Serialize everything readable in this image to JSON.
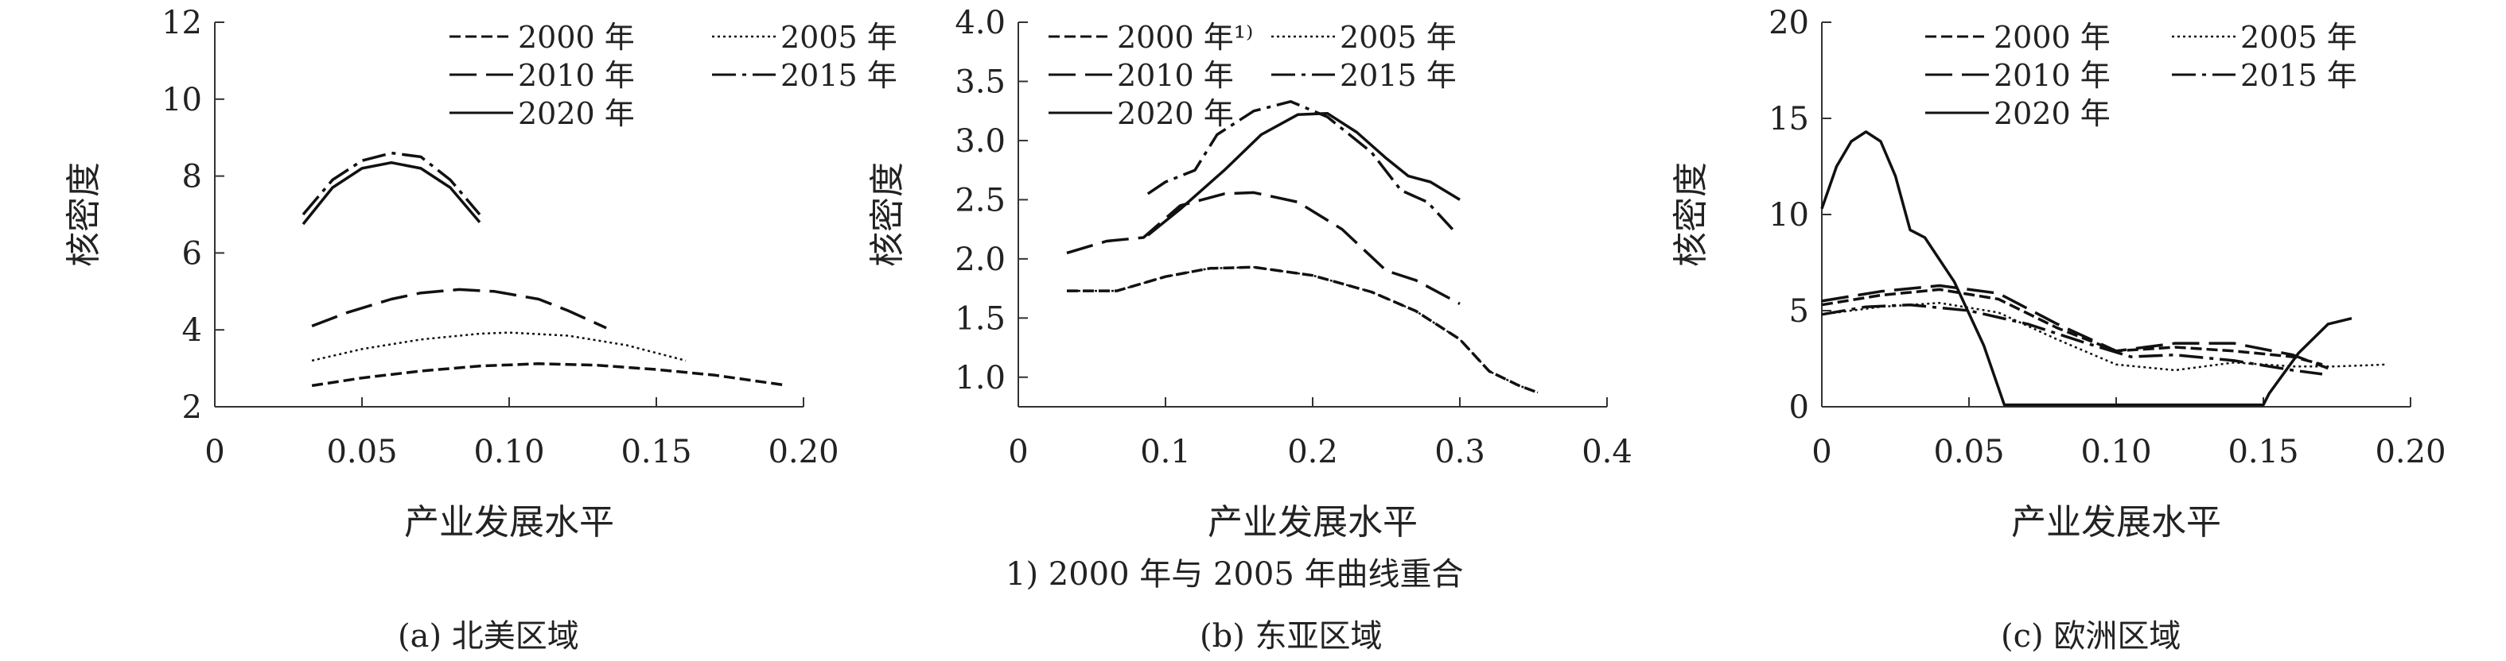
{
  "footnote": "1) 2000 年与 2005 年曲线重合",
  "chart_data": [
    {
      "type": "line",
      "caption": "(a) 北美区域",
      "xlabel": "产业发展水平",
      "ylabel": "核密度",
      "xlim": [
        0,
        0.2
      ],
      "ylim": [
        2,
        12
      ],
      "xticks": [
        "0",
        "0.05",
        "0.10",
        "0.15",
        "0.20"
      ],
      "yticks": [
        "2",
        "4",
        "6",
        "8",
        "10",
        "12"
      ],
      "legend": [
        "2000 年",
        "2005 年",
        "2010 年",
        "2015 年",
        "2020 年"
      ],
      "series": [
        {
          "name": "2000 年",
          "style": "dash-short",
          "points": [
            [
              0.033,
              2.55
            ],
            [
              0.05,
              2.75
            ],
            [
              0.07,
              2.93
            ],
            [
              0.09,
              3.06
            ],
            [
              0.11,
              3.12
            ],
            [
              0.13,
              3.08
            ],
            [
              0.15,
              2.97
            ],
            [
              0.17,
              2.82
            ],
            [
              0.193,
              2.57
            ]
          ]
        },
        {
          "name": "2005 年",
          "style": "dotted",
          "points": [
            [
              0.033,
              3.2
            ],
            [
              0.05,
              3.5
            ],
            [
              0.07,
              3.75
            ],
            [
              0.09,
              3.9
            ],
            [
              0.1,
              3.93
            ],
            [
              0.12,
              3.85
            ],
            [
              0.14,
              3.6
            ],
            [
              0.16,
              3.2
            ]
          ]
        },
        {
          "name": "2010 年",
          "style": "dash-long",
          "points": [
            [
              0.033,
              4.1
            ],
            [
              0.045,
              4.45
            ],
            [
              0.06,
              4.8
            ],
            [
              0.07,
              4.96
            ],
            [
              0.083,
              5.05
            ],
            [
              0.095,
              5.0
            ],
            [
              0.11,
              4.8
            ],
            [
              0.12,
              4.5
            ],
            [
              0.133,
              4.05
            ]
          ]
        },
        {
          "name": "2015 年",
          "style": "dash-dot",
          "points": [
            [
              0.03,
              7.0
            ],
            [
              0.04,
              7.9
            ],
            [
              0.05,
              8.4
            ],
            [
              0.06,
              8.6
            ],
            [
              0.07,
              8.5
            ],
            [
              0.08,
              7.9
            ],
            [
              0.09,
              7.0
            ]
          ]
        },
        {
          "name": "2020 年",
          "style": "solid",
          "points": [
            [
              0.03,
              6.75
            ],
            [
              0.04,
              7.7
            ],
            [
              0.05,
              8.2
            ],
            [
              0.06,
              8.35
            ],
            [
              0.07,
              8.2
            ],
            [
              0.08,
              7.7
            ],
            [
              0.09,
              6.8
            ]
          ]
        }
      ]
    },
    {
      "type": "line",
      "caption": "(b) 东亚区域",
      "xlabel": "产业发展水平",
      "ylabel": "核密度",
      "xlim": [
        0,
        0.4
      ],
      "ylim": [
        0.75,
        4.0
      ],
      "xticks": [
        "0",
        "0.1",
        "0.2",
        "0.3",
        "0.4"
      ],
      "yticks": [
        "1.0",
        "1.5",
        "2.0",
        "2.5",
        "3.0",
        "3.5",
        "4.0"
      ],
      "legend": [
        "2000 年¹⁾",
        "2005 年",
        "2010 年",
        "2015 年",
        "2020 年"
      ],
      "series": [
        {
          "name": "2000 年",
          "style": "dash-short",
          "points": [
            [
              0.033,
              1.73
            ],
            [
              0.067,
              1.73
            ],
            [
              0.1,
              1.85
            ],
            [
              0.13,
              1.92
            ],
            [
              0.16,
              1.93
            ],
            [
              0.2,
              1.86
            ],
            [
              0.24,
              1.72
            ],
            [
              0.27,
              1.56
            ],
            [
              0.3,
              1.32
            ],
            [
              0.32,
              1.05
            ],
            [
              0.34,
              0.93
            ],
            [
              0.353,
              0.87
            ]
          ]
        },
        {
          "name": "2005 年",
          "style": "dotted",
          "points": [
            [
              0.033,
              1.73
            ],
            [
              0.067,
              1.73
            ],
            [
              0.1,
              1.85
            ],
            [
              0.13,
              1.92
            ],
            [
              0.16,
              1.93
            ],
            [
              0.2,
              1.86
            ],
            [
              0.24,
              1.72
            ],
            [
              0.27,
              1.56
            ],
            [
              0.3,
              1.32
            ],
            [
              0.32,
              1.05
            ],
            [
              0.34,
              0.93
            ],
            [
              0.353,
              0.87
            ]
          ]
        },
        {
          "name": "2010 年",
          "style": "dash-long",
          "points": [
            [
              0.033,
              2.05
            ],
            [
              0.06,
              2.15
            ],
            [
              0.085,
              2.18
            ],
            [
              0.11,
              2.45
            ],
            [
              0.14,
              2.55
            ],
            [
              0.16,
              2.56
            ],
            [
              0.19,
              2.48
            ],
            [
              0.22,
              2.25
            ],
            [
              0.25,
              1.9
            ],
            [
              0.27,
              1.82
            ],
            [
              0.3,
              1.62
            ]
          ]
        },
        {
          "name": "2015 年",
          "style": "dash-dot",
          "points": [
            [
              0.088,
              2.55
            ],
            [
              0.1,
              2.65
            ],
            [
              0.12,
              2.75
            ],
            [
              0.135,
              3.05
            ],
            [
              0.16,
              3.25
            ],
            [
              0.185,
              3.33
            ],
            [
              0.21,
              3.2
            ],
            [
              0.24,
              2.9
            ],
            [
              0.26,
              2.58
            ],
            [
              0.278,
              2.48
            ],
            [
              0.295,
              2.25
            ]
          ]
        },
        {
          "name": "2020 年",
          "style": "solid",
          "points": [
            [
              0.088,
              2.2
            ],
            [
              0.11,
              2.42
            ],
            [
              0.14,
              2.75
            ],
            [
              0.165,
              3.05
            ],
            [
              0.19,
              3.22
            ],
            [
              0.21,
              3.23
            ],
            [
              0.23,
              3.07
            ],
            [
              0.25,
              2.85
            ],
            [
              0.265,
              2.7
            ],
            [
              0.28,
              2.65
            ],
            [
              0.3,
              2.5
            ]
          ]
        }
      ]
    },
    {
      "type": "line",
      "caption": "(c) 欧洲区域",
      "xlabel": "产业发展水平",
      "ylabel": "核密度",
      "xlim": [
        0,
        0.2
      ],
      "ylim": [
        0,
        20
      ],
      "xticks": [
        "0",
        "0.05",
        "0.10",
        "0.15",
        "0.20"
      ],
      "yticks": [
        "0",
        "5",
        "10",
        "15",
        "20"
      ],
      "legend": [
        "2000 年",
        "2005 年",
        "2010 年",
        "2015 年",
        "2020 年"
      ],
      "series": [
        {
          "name": "2000 年",
          "style": "dash-short",
          "points": [
            [
              0,
              5.3
            ],
            [
              0.02,
              5.8
            ],
            [
              0.04,
              6.1
            ],
            [
              0.06,
              5.6
            ],
            [
              0.08,
              4.1
            ],
            [
              0.1,
              2.9
            ],
            [
              0.12,
              3.1
            ],
            [
              0.14,
              2.9
            ],
            [
              0.16,
              2.6
            ],
            [
              0.17,
              2.2
            ]
          ]
        },
        {
          "name": "2005 年",
          "style": "dotted",
          "points": [
            [
              0,
              4.8
            ],
            [
              0.02,
              5.2
            ],
            [
              0.04,
              5.4
            ],
            [
              0.06,
              4.9
            ],
            [
              0.08,
              3.5
            ],
            [
              0.1,
              2.2
            ],
            [
              0.12,
              1.9
            ],
            [
              0.14,
              2.3
            ],
            [
              0.16,
              2.1
            ],
            [
              0.175,
              2.1
            ],
            [
              0.192,
              2.2
            ]
          ]
        },
        {
          "name": "2010 年",
          "style": "dash-long",
          "points": [
            [
              0,
              5.5
            ],
            [
              0.02,
              6.0
            ],
            [
              0.04,
              6.3
            ],
            [
              0.06,
              5.9
            ],
            [
              0.08,
              4.3
            ],
            [
              0.1,
              2.9
            ],
            [
              0.12,
              3.3
            ],
            [
              0.14,
              3.3
            ],
            [
              0.16,
              2.7
            ],
            [
              0.172,
              2.0
            ]
          ]
        },
        {
          "name": "2015 年",
          "style": "dash-dot",
          "points": [
            [
              0,
              4.8
            ],
            [
              0.015,
              5.2
            ],
            [
              0.03,
              5.3
            ],
            [
              0.05,
              5.0
            ],
            [
              0.07,
              4.3
            ],
            [
              0.09,
              3.3
            ],
            [
              0.105,
              2.6
            ],
            [
              0.12,
              2.7
            ],
            [
              0.14,
              2.4
            ],
            [
              0.16,
              1.9
            ],
            [
              0.17,
              1.7
            ]
          ]
        },
        {
          "name": "2020 年",
          "style": "solid",
          "points": [
            [
              0,
              10.3
            ],
            [
              0.005,
              12.5
            ],
            [
              0.01,
              13.8
            ],
            [
              0.015,
              14.3
            ],
            [
              0.02,
              13.8
            ],
            [
              0.025,
              12.0
            ],
            [
              0.03,
              9.2
            ],
            [
              0.035,
              8.8
            ],
            [
              0.045,
              6.5
            ],
            [
              0.055,
              3.2
            ],
            [
              0.062,
              0.1
            ],
            [
              0.1,
              0.1
            ],
            [
              0.15,
              0.1
            ],
            [
              0.152,
              0.7
            ],
            [
              0.162,
              2.8
            ],
            [
              0.172,
              4.3
            ],
            [
              0.18,
              4.6
            ]
          ]
        }
      ]
    }
  ]
}
